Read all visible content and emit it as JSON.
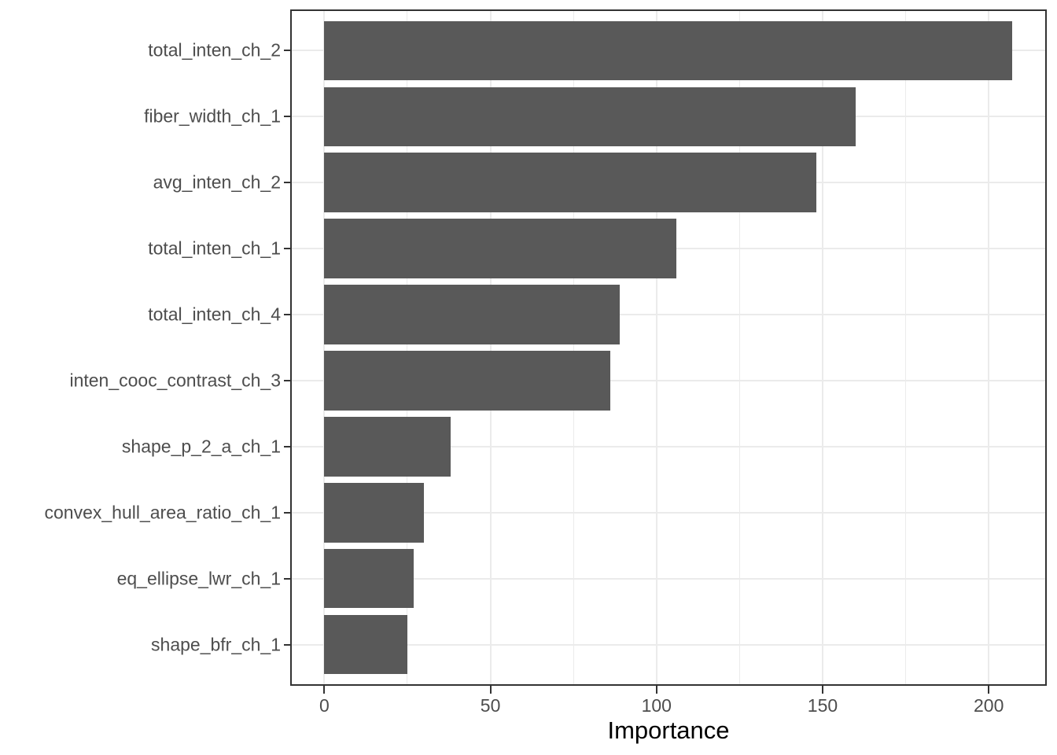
{
  "chart_data": {
    "type": "bar",
    "orientation": "horizontal",
    "title": "",
    "xlabel": "Importance",
    "ylabel": "",
    "categories": [
      "total_inten_ch_2",
      "fiber_width_ch_1",
      "avg_inten_ch_2",
      "total_inten_ch_1",
      "total_inten_ch_4",
      "inten_cooc_contrast_ch_3",
      "shape_p_2_a_ch_1",
      "convex_hull_area_ratio_ch_1",
      "eq_ellipse_lwr_ch_1",
      "shape_bfr_ch_1"
    ],
    "values": [
      207,
      160,
      148,
      106,
      89,
      86,
      38,
      30,
      27,
      25
    ],
    "x_major_ticks": [
      0,
      50,
      100,
      150,
      200
    ],
    "x_major_tick_labels": [
      "0",
      "50",
      "100",
      "150",
      "200"
    ],
    "x_minor_ticks": [
      25,
      75,
      125,
      175
    ],
    "xlim": [
      -9.8,
      217
    ],
    "grid": true,
    "legend": "none",
    "bar_color": "#595959",
    "grid_major_color": "#ebebeb",
    "grid_minor_color": "#ebebeb",
    "panel_border_color": "#333333",
    "tick_color": "#333333",
    "tick_label_color": "#4d4d4d",
    "axis_title_color": "#000000",
    "background_color": "#ffffff"
  }
}
